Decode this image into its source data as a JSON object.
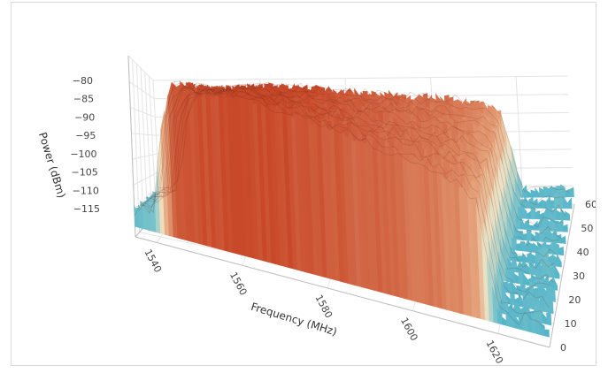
{
  "chart_data": {
    "type": "surface",
    "title": "",
    "xlabel": "Frequency (MHz)",
    "ylabel": "",
    "zlabel": "Power (dBm)",
    "xlim": [
      1535,
      1632
    ],
    "ylim": [
      0,
      60
    ],
    "zlim": [
      -115,
      -80
    ],
    "x_ticks": [
      "1540",
      "1560",
      "1580",
      "1600",
      "1620"
    ],
    "y_ticks": [
      "0",
      "10",
      "20",
      "30",
      "40",
      "50",
      "60"
    ],
    "z_ticks": [
      "−80",
      "−85",
      "−90",
      "−95",
      "−100",
      "−105",
      "−110",
      "−115"
    ],
    "grid": true,
    "colorscale": [
      "#4fb3c9",
      "#9fd0cc",
      "#efe2c4",
      "#e5a27a",
      "#c8492a"
    ],
    "profile": {
      "frequency_mhz": [
        1535,
        1538,
        1540,
        1542,
        1545,
        1548,
        1550,
        1555,
        1560,
        1565,
        1570,
        1575,
        1580,
        1585,
        1590,
        1595,
        1600,
        1605,
        1610,
        1613,
        1616,
        1618,
        1620,
        1622,
        1625,
        1628,
        1632
      ],
      "power_dbm": [
        -110,
        -109,
        -108,
        -92,
        -84,
        -83,
        -83,
        -82.5,
        -82,
        -82,
        -82.5,
        -83,
        -83.5,
        -84,
        -84.5,
        -85,
        -85.5,
        -86,
        -87,
        -88,
        -90,
        -100,
        -110,
        -111,
        -111,
        -110,
        -111
      ]
    },
    "trace_rows": [
      0,
      5,
      10,
      15,
      20,
      25,
      30,
      35,
      40,
      45,
      50,
      55,
      60
    ]
  }
}
